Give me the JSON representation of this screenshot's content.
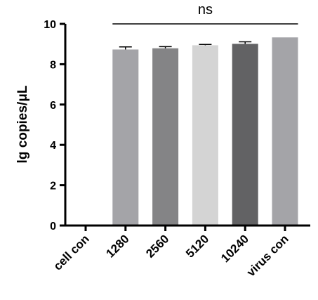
{
  "chart_data": {
    "type": "bar",
    "title": "",
    "xlabel": "",
    "ylabel": "lg copies/μL",
    "ylim": [
      0,
      10
    ],
    "yticks": [
      "0",
      "2",
      "4",
      "6",
      "8",
      "10"
    ],
    "categories": [
      "cell con",
      "1280",
      "2560",
      "5120",
      "10240",
      "virus con"
    ],
    "values": [
      0,
      8.73,
      8.79,
      8.94,
      9.01,
      9.33
    ],
    "errors": [
      0,
      0.13,
      0.08,
      0.04,
      0.1,
      0
    ],
    "bar_colors": [
      "#ffffff",
      "#a4a4a8",
      "#848486",
      "#d4d4d4",
      "#626264",
      "#a4a4a8"
    ],
    "grid": false,
    "legend": "none",
    "annotation": {
      "text": "ns",
      "from_category": "1280",
      "to_category": "virus con"
    }
  }
}
